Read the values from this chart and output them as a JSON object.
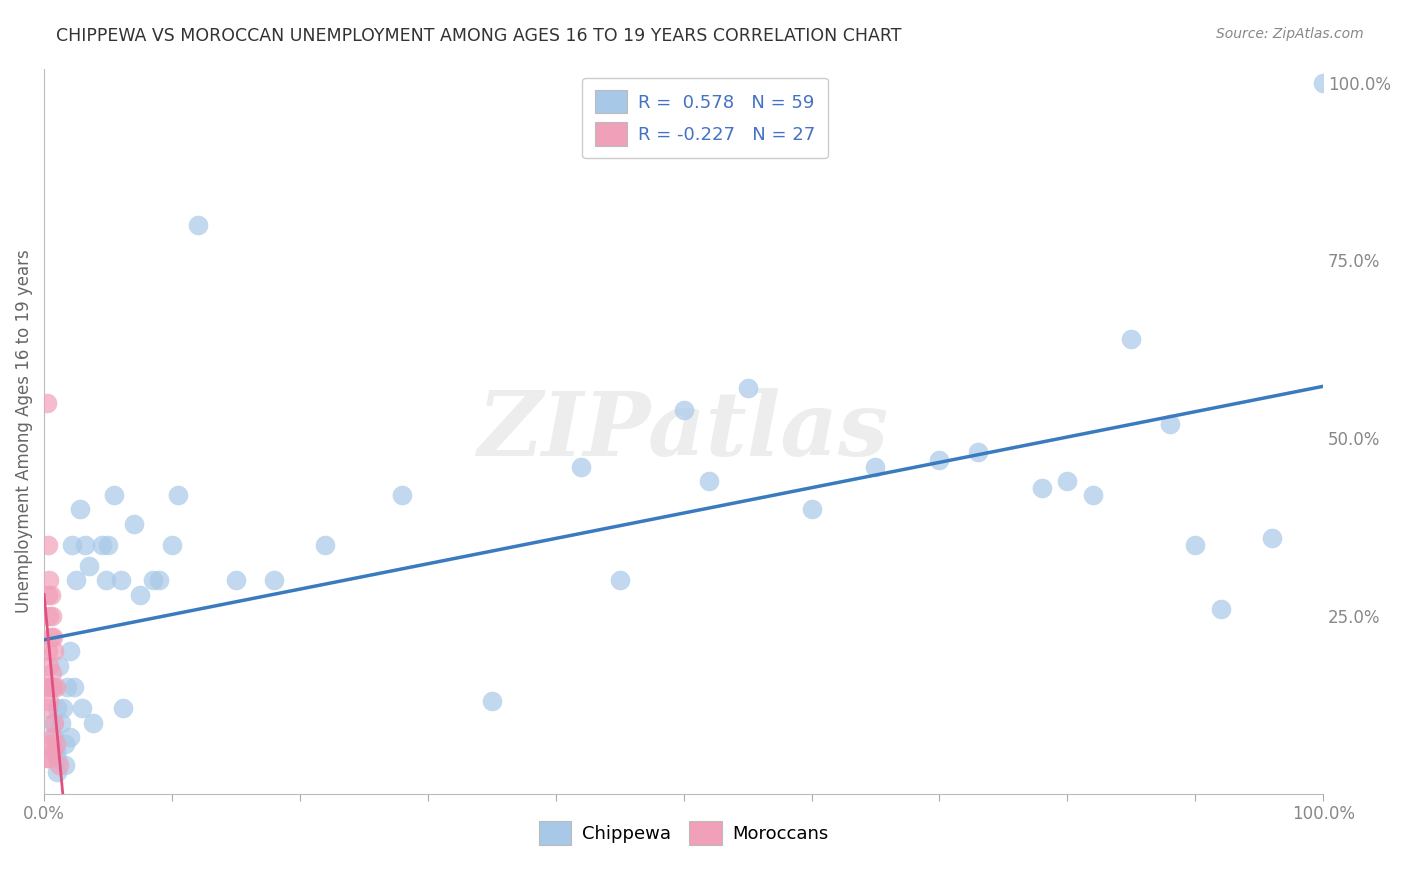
{
  "title": "CHIPPEWA VS MOROCCAN UNEMPLOYMENT AMONG AGES 16 TO 19 YEARS CORRELATION CHART",
  "source": "Source: ZipAtlas.com",
  "ylabel": "Unemployment Among Ages 16 to 19 years",
  "xlim": [
    0,
    1
  ],
  "ylim": [
    0,
    1.02
  ],
  "yticks_right": [
    0.0,
    0.25,
    0.5,
    0.75,
    1.0
  ],
  "yticklabels_right": [
    "",
    "25.0%",
    "50.0%",
    "75.0%",
    "100.0%"
  ],
  "R_chippewa": 0.578,
  "N_chippewa": 59,
  "R_moroccan": -0.227,
  "N_moroccan": 27,
  "chippewa_color": "#a8c8e8",
  "moroccan_color": "#f0a0b8",
  "chippewa_line_color": "#3a7bbf",
  "moroccan_line_color": "#e05080",
  "legend_text_color": "#4472c4",
  "watermark_text": "ZIPatlas",
  "background_color": "#ffffff",
  "grid_color": "#cccccc",
  "title_color": "#333333",
  "source_color": "#888888",
  "axis_label_color": "#666666",
  "tick_color": "#888888",
  "chippewa_x": [
    0.005,
    0.007,
    0.008,
    0.009,
    0.01,
    0.01,
    0.01,
    0.012,
    0.013,
    0.015,
    0.016,
    0.016,
    0.018,
    0.02,
    0.02,
    0.022,
    0.023,
    0.025,
    0.028,
    0.03,
    0.032,
    0.035,
    0.038,
    0.045,
    0.048,
    0.05,
    0.055,
    0.06,
    0.062,
    0.07,
    0.075,
    0.085,
    0.09,
    0.1,
    0.105,
    0.12,
    0.15,
    0.18,
    0.22,
    0.28,
    0.35,
    0.42,
    0.45,
    0.5,
    0.52,
    0.55,
    0.6,
    0.65,
    0.7,
    0.73,
    0.78,
    0.8,
    0.82,
    0.85,
    0.88,
    0.9,
    0.92,
    0.96,
    1.0
  ],
  "chippewa_y": [
    0.15,
    0.1,
    0.08,
    0.06,
    0.12,
    0.05,
    0.03,
    0.18,
    0.1,
    0.12,
    0.07,
    0.04,
    0.15,
    0.2,
    0.08,
    0.35,
    0.15,
    0.3,
    0.4,
    0.12,
    0.35,
    0.32,
    0.1,
    0.35,
    0.3,
    0.35,
    0.42,
    0.3,
    0.12,
    0.38,
    0.28,
    0.3,
    0.3,
    0.35,
    0.42,
    0.8,
    0.3,
    0.3,
    0.35,
    0.42,
    0.13,
    0.46,
    0.3,
    0.54,
    0.44,
    0.57,
    0.4,
    0.46,
    0.47,
    0.48,
    0.43,
    0.44,
    0.42,
    0.64,
    0.52,
    0.35,
    0.26,
    0.36,
    1.0
  ],
  "moroccan_x": [
    0.002,
    0.002,
    0.002,
    0.003,
    0.003,
    0.003,
    0.003,
    0.004,
    0.004,
    0.004,
    0.004,
    0.004,
    0.005,
    0.005,
    0.005,
    0.005,
    0.006,
    0.006,
    0.006,
    0.007,
    0.007,
    0.007,
    0.008,
    0.008,
    0.009,
    0.009,
    0.012
  ],
  "moroccan_y": [
    0.55,
    0.15,
    0.05,
    0.35,
    0.28,
    0.2,
    0.12,
    0.3,
    0.25,
    0.18,
    0.13,
    0.05,
    0.28,
    0.22,
    0.15,
    0.07,
    0.25,
    0.17,
    0.08,
    0.22,
    0.15,
    0.06,
    0.2,
    0.1,
    0.15,
    0.07,
    0.04
  ]
}
